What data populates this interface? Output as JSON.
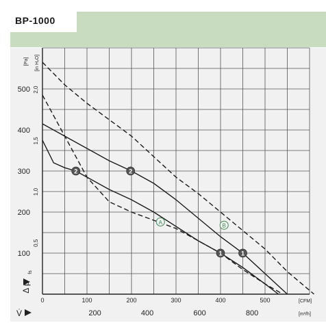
{
  "title": "BP-1000",
  "chart_data": {
    "type": "line",
    "title": "BP-1000",
    "axes": {
      "y_pa": {
        "label_symbol": "Δ p",
        "label_sub": "fs",
        "unit": "[Pa]",
        "ticks": [
          100,
          200,
          300,
          400,
          500
        ],
        "range": [
          0,
          600
        ]
      },
      "y_inh2o": {
        "unit": "[in H₂O]",
        "ticks": [
          "0,5",
          "1,0",
          "1,5",
          "2,0"
        ],
        "tick_values": [
          0.5,
          1.0,
          1.5,
          2.0
        ]
      },
      "x_cfm": {
        "unit": "[CFM]",
        "ticks": [
          0,
          100,
          200,
          300,
          400,
          500
        ],
        "range": [
          0,
          600
        ]
      },
      "x_m3h": {
        "label_symbol": "V̇",
        "unit": "[m³/h]",
        "ticks": [
          200,
          400,
          600,
          800
        ]
      }
    },
    "grid": true,
    "series": [
      {
        "style": "solid",
        "points": [
          [
            0,
            415
          ],
          [
            50,
            385
          ],
          [
            100,
            355
          ],
          [
            150,
            325
          ],
          [
            200,
            300
          ],
          [
            250,
            270
          ],
          [
            300,
            230
          ],
          [
            350,
            185
          ],
          [
            400,
            140
          ],
          [
            450,
            100
          ],
          [
            500,
            50
          ],
          [
            550,
            0
          ]
        ]
      },
      {
        "style": "solid",
        "points": [
          [
            0,
            375
          ],
          [
            25,
            320
          ],
          [
            50,
            308
          ],
          [
            75,
            300
          ],
          [
            100,
            285
          ],
          [
            150,
            255
          ],
          [
            200,
            230
          ],
          [
            250,
            200
          ],
          [
            300,
            165
          ],
          [
            350,
            130
          ],
          [
            400,
            100
          ],
          [
            450,
            65
          ],
          [
            500,
            25
          ],
          [
            530,
            0
          ]
        ]
      },
      {
        "style": "dashed",
        "points": [
          [
            0,
            565
          ],
          [
            50,
            510
          ],
          [
            100,
            465
          ],
          [
            150,
            425
          ],
          [
            200,
            385
          ],
          [
            250,
            335
          ],
          [
            300,
            285
          ],
          [
            350,
            245
          ],
          [
            400,
            200
          ],
          [
            450,
            155
          ],
          [
            500,
            110
          ],
          [
            550,
            55
          ],
          [
            610,
            0
          ]
        ]
      },
      {
        "style": "dashed",
        "points": [
          [
            0,
            485
          ],
          [
            50,
            385
          ],
          [
            100,
            285
          ],
          [
            150,
            225
          ],
          [
            200,
            200
          ],
          [
            250,
            180
          ],
          [
            300,
            160
          ],
          [
            350,
            130
          ],
          [
            400,
            100
          ],
          [
            450,
            60
          ],
          [
            500,
            25
          ],
          [
            540,
            0
          ]
        ]
      }
    ],
    "markers": [
      {
        "label": "2",
        "style": "filled",
        "x": 75,
        "y": 300
      },
      {
        "label": "2",
        "style": "filled",
        "x": 198,
        "y": 300
      },
      {
        "label": "1",
        "style": "filled",
        "x": 400,
        "y": 100
      },
      {
        "label": "1",
        "style": "filled",
        "x": 450,
        "y": 100
      },
      {
        "label": "A",
        "style": "outline",
        "x": 265,
        "y": 176
      },
      {
        "label": "B",
        "style": "outline",
        "x": 408,
        "y": 168
      }
    ]
  }
}
